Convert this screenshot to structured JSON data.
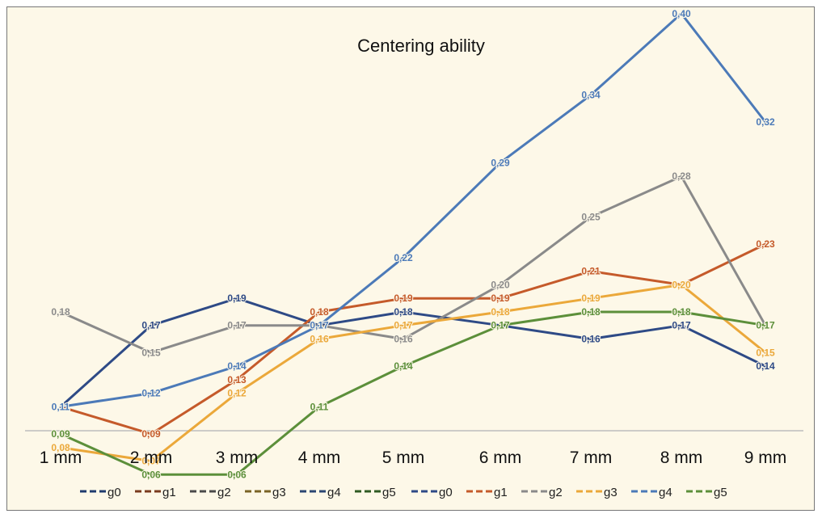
{
  "chart_data": {
    "type": "line",
    "title": "Centering ability",
    "xlabel": "",
    "ylabel": "",
    "categories": [
      "1 mm",
      "2 mm",
      "3 mm",
      "4 mm",
      "5 mm",
      "6 mm",
      "7 mm",
      "8 mm",
      "9 mm"
    ],
    "ylim": [
      0,
      0.42
    ],
    "grid": false,
    "legend_position": "bottom",
    "series": [
      {
        "name": "g0",
        "color": "#2e4a86",
        "values": [
          0.11,
          0.17,
          0.19,
          0.17,
          0.18,
          0.17,
          0.16,
          0.17,
          0.14
        ],
        "labels": [
          "0,11",
          "0,17",
          "0,19",
          "0,17",
          "0,18",
          "0,17",
          "0,16",
          "0,17",
          "0,14"
        ]
      },
      {
        "name": "g1",
        "color": "#c55a2a",
        "values": [
          0.11,
          0.09,
          0.13,
          0.18,
          0.19,
          0.19,
          0.21,
          0.2,
          0.23
        ],
        "labels": [
          "0,11",
          "0,09",
          "0,13",
          "0,18",
          "0,19",
          "0,19",
          "0,21",
          "0,20",
          "0,23"
        ]
      },
      {
        "name": "g2",
        "color": "#8a8a8a",
        "values": [
          0.18,
          0.15,
          0.17,
          0.17,
          0.16,
          0.2,
          0.25,
          0.28,
          0.17
        ],
        "labels": [
          "0,18",
          "0,15",
          "0,17",
          "0,17",
          "0,16",
          "0,20",
          "0,25",
          "0,28",
          "0,17"
        ]
      },
      {
        "name": "g3",
        "color": "#eba83a",
        "values": [
          0.08,
          0.07,
          0.12,
          0.16,
          0.17,
          0.18,
          0.19,
          0.2,
          0.15
        ],
        "labels": [
          "0,08",
          "0,07",
          "0,12",
          "0,16",
          "0,17",
          "0,18",
          "0,19",
          "0,20",
          "0,15"
        ]
      },
      {
        "name": "g4",
        "color": "#4c7ab8",
        "values": [
          0.11,
          0.12,
          0.14,
          0.17,
          0.22,
          0.29,
          0.34,
          0.4,
          0.32
        ],
        "labels": [
          "0,11",
          "0,12",
          "0,14",
          "0,17",
          "0,22",
          "0,29",
          "0,34",
          "0,40",
          "0,32"
        ]
      },
      {
        "name": "g5",
        "color": "#5c8f3a",
        "values": [
          0.09,
          0.06,
          0.06,
          0.11,
          0.14,
          0.17,
          0.18,
          0.18,
          0.17
        ],
        "labels": [
          "0,09",
          "0,06",
          "0,06",
          "0,11",
          "0,14",
          "0,17",
          "0,18",
          "0,18",
          "0,17"
        ]
      }
    ],
    "legend": {
      "entries": [
        {
          "name": "g0",
          "color": "#1f3b6e"
        },
        {
          "name": "g1",
          "color": "#7a3b1e"
        },
        {
          "name": "g2",
          "color": "#4a4a4a"
        },
        {
          "name": "g3",
          "color": "#7a6326"
        },
        {
          "name": "g4",
          "color": "#2b4672"
        },
        {
          "name": "g5",
          "color": "#2f5a22"
        },
        {
          "name": "g0",
          "color": "#2e4a86"
        },
        {
          "name": "g1",
          "color": "#c55a2a"
        },
        {
          "name": "g2",
          "color": "#8a8a8a"
        },
        {
          "name": "g3",
          "color": "#eba83a"
        },
        {
          "name": "g4",
          "color": "#4c7ab8"
        },
        {
          "name": "g5",
          "color": "#5c8f3a"
        }
      ]
    }
  }
}
